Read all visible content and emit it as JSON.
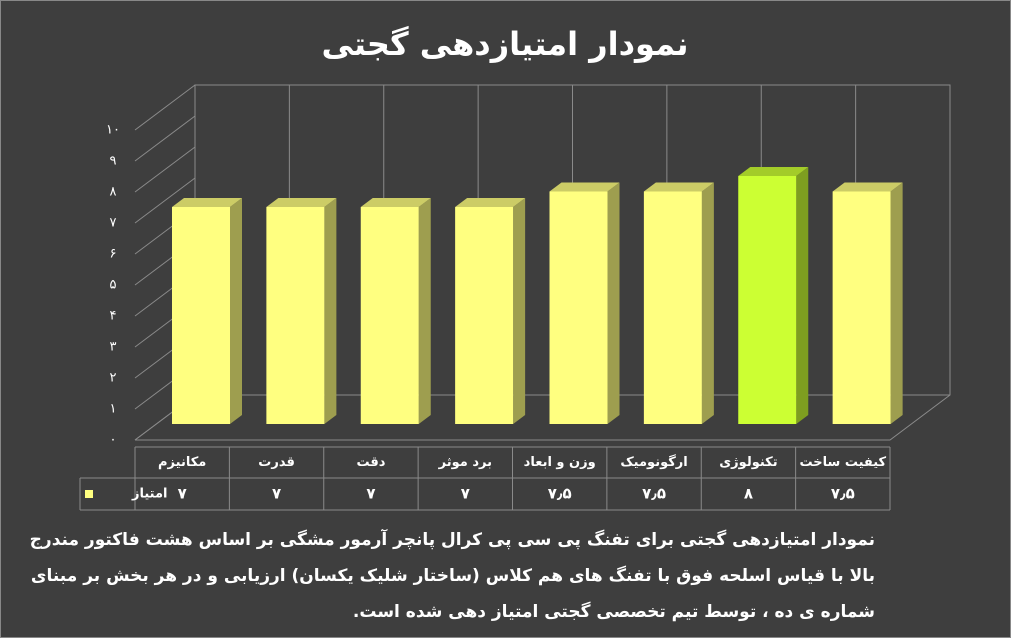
{
  "chart_data": {
    "type": "bar3d",
    "title": "نمودار امتیازدهی گجتی",
    "categories": [
      "مکانیزم",
      "قدرت",
      "دقت",
      "برد موثر",
      "وزن و ابعاد",
      "ارگونومیک",
      "تکنولوژی",
      "کیفیت ساخت"
    ],
    "series": [
      {
        "name": "امتیاز",
        "color": "#ffff80",
        "colors": [
          "#ffff80",
          "#ffff80",
          "#ffff80",
          "#ffff80",
          "#ffff80",
          "#ffff80",
          "#ccff33",
          "#ffff80"
        ],
        "values": [
          7,
          7,
          7,
          7,
          7.5,
          7.5,
          8,
          7.5
        ],
        "value_labels": [
          "۷",
          "۷",
          "۷",
          "۷",
          "۷٫۵",
          "۷٫۵",
          "۸",
          "۷٫۵"
        ]
      }
    ],
    "ylim": [
      0,
      10
    ],
    "yticks": [
      {
        "value": 0,
        "label": "۰"
      },
      {
        "value": 1,
        "label": "۱"
      },
      {
        "value": 2,
        "label": "۲"
      },
      {
        "value": 3,
        "label": "۳"
      },
      {
        "value": 4,
        "label": "۴"
      },
      {
        "value": 5,
        "label": "۵"
      },
      {
        "value": 6,
        "label": "۶"
      },
      {
        "value": 7,
        "label": "۷"
      },
      {
        "value": 8,
        "label": "۸"
      },
      {
        "value": 9,
        "label": "۹"
      },
      {
        "value": 10,
        "label": "۱۰"
      }
    ],
    "grid": true,
    "caption": [
      "نمودار امتیازدهی گجتی برای تفنگ پی سی پی کرال پانچر آرمور مشگی بر اساس هشت فاکتور مندرج",
      "بالا با قیاس اسلحه فوق با تفنگ های هم کلاس (ساختار شلیک یکسان) ارزیابی و در هر بخش بر مبنای",
      "شماره ی ده ، توسط تیم تخصصی گجتی امتیاز دهی شده است."
    ]
  }
}
